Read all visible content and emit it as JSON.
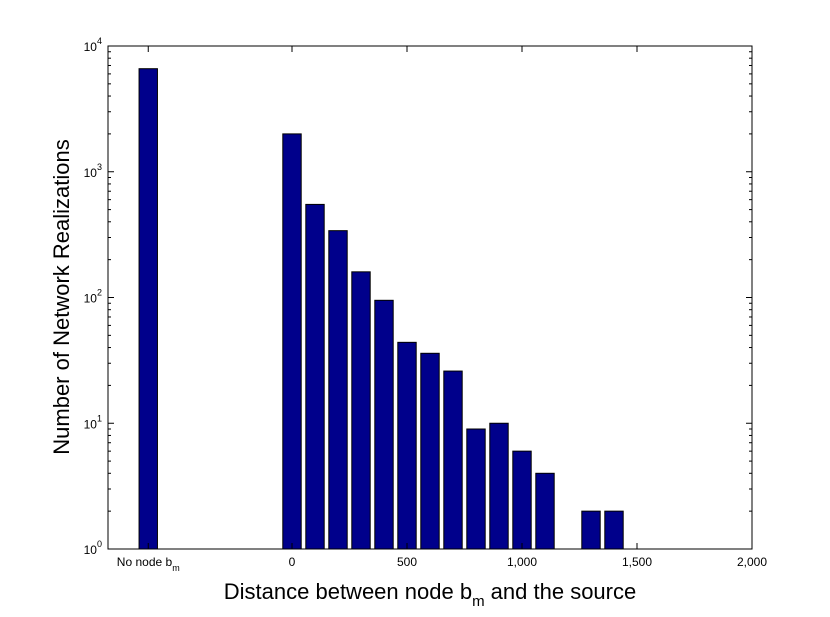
{
  "chart_data": {
    "type": "bar",
    "title": "",
    "xlabel": {
      "main": "Distance between node b",
      "sub": "m",
      "rest": " and the source"
    },
    "ylabel": "Number of Network Realizations",
    "yscale": "log",
    "ylim": [
      1,
      10000
    ],
    "xlim": [
      -800,
      2000
    ],
    "bar_width": 100,
    "grid": false,
    "bar_color": "#00008b",
    "x_ticks": [
      {
        "x": -625,
        "label": "No node b",
        "sub": "m"
      },
      {
        "x": 0,
        "label": "0"
      },
      {
        "x": 500,
        "label": "500"
      },
      {
        "x": 1000,
        "label": "1,000"
      },
      {
        "x": 1500,
        "label": "1,500"
      },
      {
        "x": 2000,
        "label": "2,000"
      }
    ],
    "y_ticks": [
      {
        "value": 1,
        "base": "10",
        "exp": "0"
      },
      {
        "value": 10,
        "base": "10",
        "exp": "1"
      },
      {
        "value": 100,
        "base": "10",
        "exp": "2"
      },
      {
        "value": 1000,
        "base": "10",
        "exp": "3"
      },
      {
        "value": 10000,
        "base": "10",
        "exp": "4"
      }
    ],
    "bars": [
      {
        "x": -625,
        "value": 6600
      },
      {
        "x": 0,
        "value": 2000
      },
      {
        "x": 100,
        "value": 550
      },
      {
        "x": 200,
        "value": 340
      },
      {
        "x": 300,
        "value": 160
      },
      {
        "x": 400,
        "value": 95
      },
      {
        "x": 500,
        "value": 44
      },
      {
        "x": 600,
        "value": 36
      },
      {
        "x": 700,
        "value": 26
      },
      {
        "x": 800,
        "value": 9
      },
      {
        "x": 900,
        "value": 10
      },
      {
        "x": 1000,
        "value": 6
      },
      {
        "x": 1100,
        "value": 4
      },
      {
        "x": 1200,
        "value": 1
      },
      {
        "x": 1300,
        "value": 2
      },
      {
        "x": 1400,
        "value": 2
      }
    ]
  }
}
